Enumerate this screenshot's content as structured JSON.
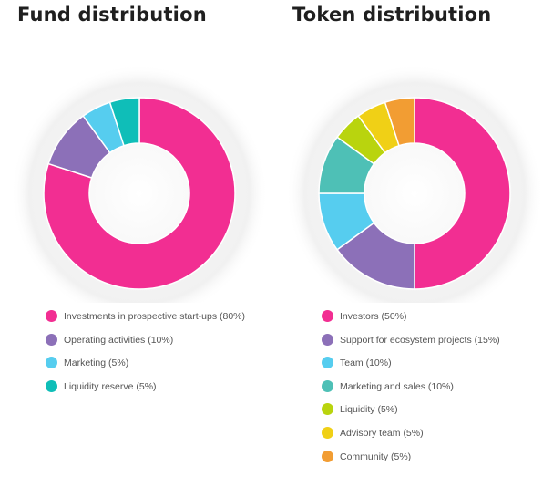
{
  "chart_data": [
    {
      "type": "pie",
      "title": "Fund distribution",
      "categories": [
        "Investments in prospective start-ups",
        "Operating activities",
        "Marketing",
        "Liquidity reserve"
      ],
      "values": [
        80,
        10,
        5,
        5
      ],
      "legend_labels": [
        "Investments in prospective start-ups (80%)",
        "Operating activities (10%)",
        "Marketing (5%)",
        "Liquidity reserve (5%)"
      ],
      "colors": [
        "#f22e92",
        "#8c70b8",
        "#56cdef",
        "#0fbeb8"
      ],
      "legend": "bottom"
    },
    {
      "type": "pie",
      "title": "Token distribution",
      "categories": [
        "Investors",
        "Support for ecosystem projects",
        "Team",
        "Marketing and sales",
        "Liquidity",
        "Advisory team",
        "Community"
      ],
      "values": [
        50,
        15,
        10,
        10,
        5,
        5,
        5
      ],
      "legend_labels": [
        "Investors (50%)",
        "Support for ecosystem projects (15%)",
        "Team (10%)",
        "Marketing and sales (10%)",
        "Liquidity (5%)",
        "Advisory team (5%)",
        "Community (5%)"
      ],
      "colors": [
        "#f22e92",
        "#8c70b8",
        "#56cdef",
        "#4ec0b6",
        "#b9d40e",
        "#f0d016",
        "#f29d33"
      ],
      "legend": "bottom"
    }
  ]
}
